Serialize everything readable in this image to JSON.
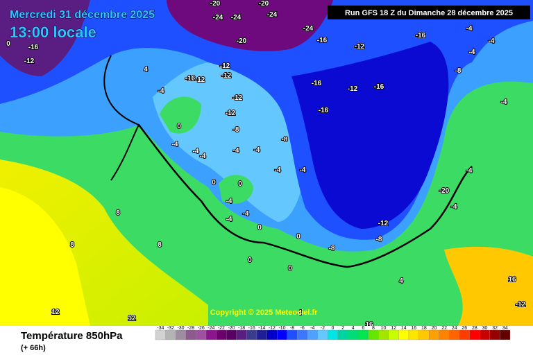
{
  "header": {
    "date": "Mercredi 31 décembre 2025",
    "time": "13:00 locale",
    "run": "Run GFS 18 Z du Dimanche 28 décembre 2025"
  },
  "copyright": "Copyright © 2025 Meteociel.fr",
  "footer": {
    "title": "Température 850hPa",
    "subtitle": "(+ 66h)"
  },
  "legend": {
    "values": [
      -34,
      -32,
      -30,
      -28,
      -26,
      -24,
      -22,
      -20,
      -18,
      -16,
      -14,
      -12,
      -10,
      -8,
      -6,
      -4,
      -2,
      0,
      2,
      4,
      6,
      8,
      10,
      12,
      14,
      16,
      18,
      20,
      22,
      24,
      26,
      28,
      30,
      32,
      34
    ],
    "colors": [
      "#d2d2d2",
      "#b4b4b4",
      "#a08ca0",
      "#8c5a8c",
      "#a050a0",
      "#8c148c",
      "#6e006e",
      "#5a0064",
      "#5a1e82",
      "#3c3c8c",
      "#1e1e96",
      "#0000c8",
      "#0000ff",
      "#1e50ff",
      "#3c78ff",
      "#50a0ff",
      "#64c8ff",
      "#00e6e6",
      "#00d2a0",
      "#00dc78",
      "#00e650",
      "#64e600",
      "#a0e600",
      "#c8ff00",
      "#ffff00",
      "#ffe600",
      "#ffc800",
      "#ffa000",
      "#ff8200",
      "#ff6400",
      "#ff3c00",
      "#ff0000",
      "#c80000",
      "#960000",
      "#640000"
    ]
  },
  "map": {
    "labels": [
      -20,
      -24,
      -24,
      -20,
      -24,
      -24,
      -20,
      -16,
      -12,
      -16,
      -4,
      -4,
      -4,
      -8,
      -4,
      -16,
      -12,
      -16,
      -16,
      -12,
      -12,
      -12,
      -12,
      -8,
      -16,
      -12,
      -4,
      4,
      0,
      -4,
      -4,
      -4,
      -4,
      -4,
      -8,
      -4,
      -4,
      0,
      0,
      -4,
      -4,
      -4,
      0,
      -12,
      -8,
      -8,
      0,
      0,
      0,
      4,
      8,
      8,
      8,
      12,
      12,
      4,
      16,
      16,
      -12,
      0,
      -4,
      -4,
      -20,
      -16,
      -12
    ]
  }
}
